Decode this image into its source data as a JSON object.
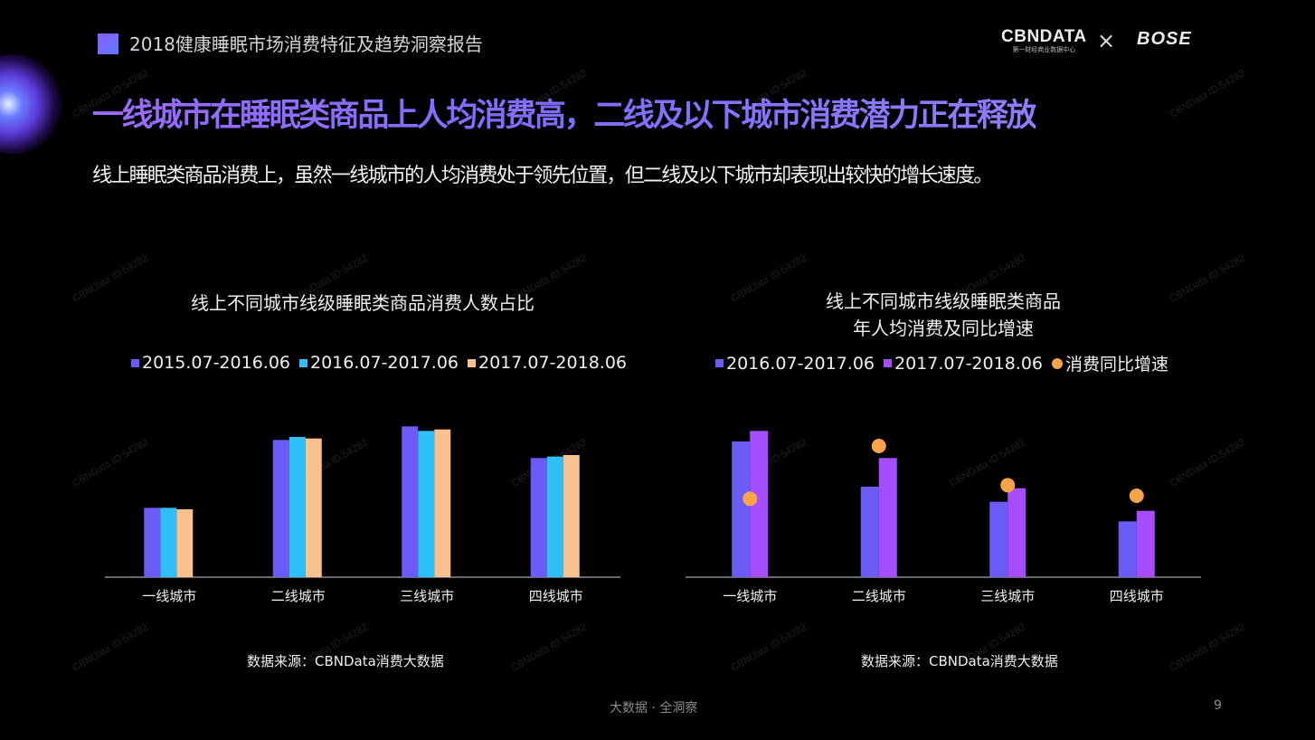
{
  "header": {
    "report_title": "2018健康睡眠市场消费特征及趋势洞察报告",
    "cbn_logo": "CBNDATA",
    "cbn_logo_sub": "第一财经商业数据中心",
    "times_sign": "×",
    "bose_logo": "BOSE"
  },
  "headline": "一线城市在睡眠类商品上人均消费高，二线及以下城市消费潜力正在释放",
  "subheadline": "线上睡眠类商品消费上，虽然一线城市的人均消费处于领先位置，但二线及以下城市却表现出较快的增长速度。",
  "watermark": "CBNData ID:54282",
  "colors": {
    "series_blue_purple": "#6a5cf5",
    "series_cyan": "#2fc0f8",
    "series_peach": "#f9c18e",
    "series_violet": "#a64dff",
    "growth_dot": "#f9a44b",
    "headline_gradient_start": "#9c6bff"
  },
  "chart_data": [
    {
      "type": "bar",
      "title": "线上不同城市线级睡眠类商品消费人数占比",
      "categories": [
        "一线城市",
        "二线城市",
        "三线城市",
        "四线城市"
      ],
      "series": [
        {
          "name": "2015.07-2016.06",
          "values": [
            0.46,
            0.91,
            1.0,
            0.79
          ]
        },
        {
          "name": "2016.07-2017.06",
          "values": [
            0.46,
            0.93,
            0.97,
            0.8
          ]
        },
        {
          "name": "2017.07-2018.06",
          "values": [
            0.45,
            0.92,
            0.98,
            0.81
          ]
        }
      ],
      "ylim": [
        0,
        1.05
      ],
      "grid": false,
      "legend_position": "top",
      "source": "数据来源：CBNData消费大数据"
    },
    {
      "type": "bar",
      "title_line1": "线上不同城市线级睡眠类商品",
      "title_line2": "年人均消费及同比增速",
      "categories": [
        "一线城市",
        "二线城市",
        "三线城市",
        "四线城市"
      ],
      "series": [
        {
          "name": "2016.07-2017.06",
          "values": [
            0.9,
            0.6,
            0.5,
            0.37
          ]
        },
        {
          "name": "2017.07-2018.06",
          "values": [
            0.97,
            0.79,
            0.59,
            0.44
          ]
        }
      ],
      "growth_series": {
        "name": "消费同比增速",
        "values": [
          0.52,
          0.87,
          0.61,
          0.54
        ]
      },
      "ylim": [
        0,
        1.05
      ],
      "growth_ylim": [
        0,
        1.05
      ],
      "grid": false,
      "legend_position": "top",
      "source": "数据来源：CBNData消费大数据"
    }
  ],
  "footer": {
    "slogan": "大数据 · 全洞察",
    "page_number": "9"
  }
}
